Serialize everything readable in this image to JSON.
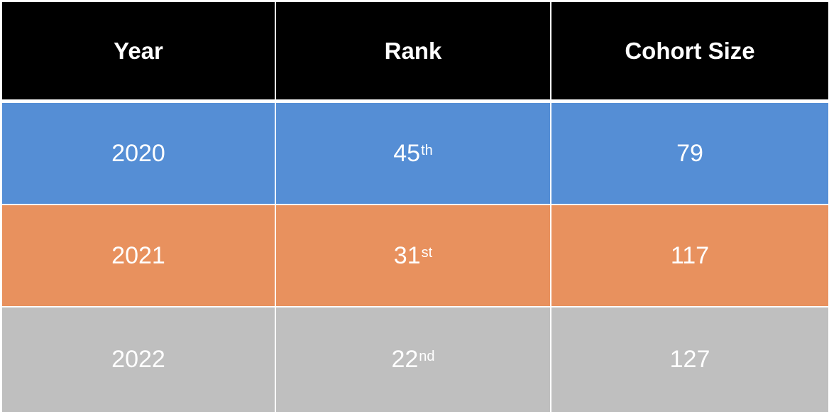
{
  "table": {
    "headers": [
      "Year",
      "Rank",
      "Cohort Size"
    ],
    "rows": [
      {
        "year": "2020",
        "rank": "45",
        "rank_suffix": "th",
        "cohort_size": "79",
        "color": "#558ed5"
      },
      {
        "year": "2021",
        "rank": "31",
        "rank_suffix": "st",
        "cohort_size": "117",
        "color": "#e8915e"
      },
      {
        "year": "2022",
        "rank": "22",
        "rank_suffix": "nd",
        "cohort_size": "127",
        "color": "#bfbfbf"
      }
    ],
    "header_color": "#000000"
  }
}
